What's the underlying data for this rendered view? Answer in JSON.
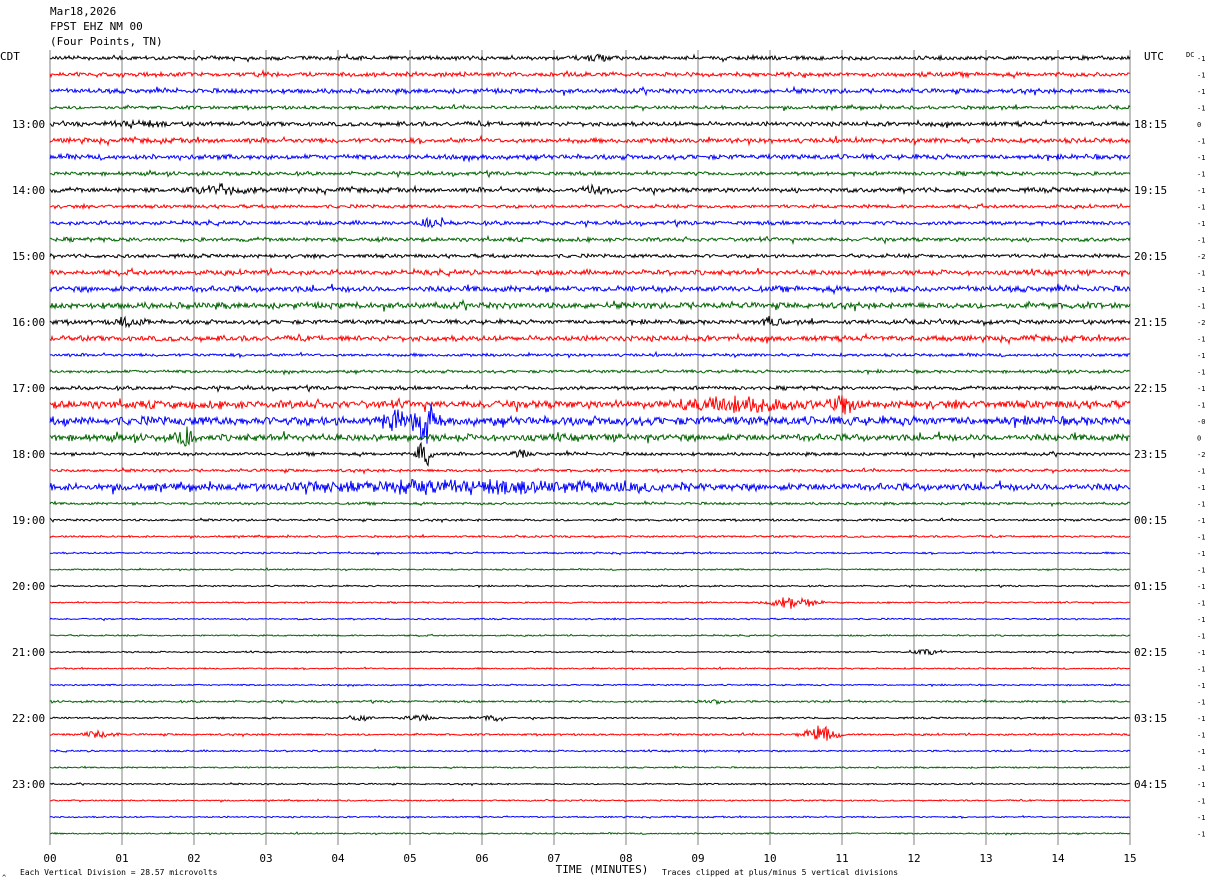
{
  "header": {
    "date": "Mar18,2026",
    "station": "FPST EHZ NM 00",
    "location": "(Four Points, TN)"
  },
  "left_timezone": "CDT",
  "right_timezone": "UTC",
  "dc_label": "DC",
  "footer": {
    "scale_note": "Each Vertical Division =   28.57 microvolts",
    "clip_note": "Traces clipped at plus/minus 5 vertical divisions",
    "corner_mark": "^"
  },
  "colors": {
    "trace_cycle": [
      "#000000",
      "#ff0000",
      "#0000ff",
      "#006400"
    ],
    "grid": "#808080",
    "text": "#000000",
    "background": "#ffffff"
  },
  "chart_data": {
    "type": "helicorder",
    "xlabel": "TIME (MINUTES)",
    "x_ticks": [
      "00",
      "01",
      "02",
      "03",
      "04",
      "05",
      "06",
      "07",
      "08",
      "09",
      "10",
      "11",
      "12",
      "13",
      "14",
      "15"
    ],
    "xlim": [
      0,
      15
    ],
    "minutes_per_line": 15,
    "lines_per_hour": 4,
    "left_hour_labels": [
      "13:00",
      "14:00",
      "15:00",
      "16:00",
      "17:00",
      "18:00",
      "19:00",
      "20:00",
      "21:00",
      "22:00",
      "23:00"
    ],
    "right_hour_labels": [
      "18:15",
      "19:15",
      "20:15",
      "21:15",
      "22:15",
      "23:15",
      "00:15",
      "01:15",
      "02:15",
      "03:15",
      "04:15"
    ],
    "first_labeled_line": 4,
    "dc_offsets": [
      "-1",
      "-1",
      "-1",
      "-1",
      "0",
      "-1",
      "-1",
      "-1",
      "-1",
      "-1",
      "-1",
      "-1",
      "-2",
      "-1",
      "-1",
      "-1",
      "-2",
      "-1",
      "-1",
      "-1",
      "-1",
      "-1",
      "-0",
      "0",
      "-2",
      "-1",
      "-1",
      "-1",
      "-1",
      "-1",
      "-1",
      "-1",
      "-1",
      "-1",
      "-1",
      "-1",
      "-1",
      "-1",
      "-1",
      "-1",
      "-1",
      "-1",
      "-1",
      "-1",
      "-1",
      "-1",
      "-1",
      "-1"
    ],
    "noise_levels": [
      1.6,
      1.8,
      1.9,
      1.4,
      1.8,
      2.0,
      2.0,
      1.5,
      1.9,
      1.4,
      1.6,
      1.6,
      1.5,
      2.0,
      2.4,
      2.5,
      1.8,
      2.2,
      1.2,
      1.2,
      1.5,
      3.2,
      3.6,
      2.8,
      1.3,
      1.2,
      3.0,
      1.0,
      0.9,
      0.8,
      0.7,
      0.6,
      0.6,
      0.6,
      0.6,
      0.6,
      0.6,
      0.6,
      0.6,
      0.8,
      0.7,
      0.8,
      0.7,
      0.6,
      0.6,
      0.6,
      0.6,
      0.6
    ],
    "events": [
      {
        "line": 0,
        "minute": 7.6,
        "amp": 4,
        "dur": 0.2
      },
      {
        "line": 4,
        "minute": 1.2,
        "amp": 3,
        "dur": 0.5
      },
      {
        "line": 8,
        "minute": 2.4,
        "amp": 4,
        "dur": 0.6
      },
      {
        "line": 8,
        "minute": 7.6,
        "amp": 5,
        "dur": 0.3
      },
      {
        "line": 10,
        "minute": 5.3,
        "amp": 4,
        "dur": 0.3
      },
      {
        "line": 16,
        "minute": 1.1,
        "amp": 6,
        "dur": 0.3
      },
      {
        "line": 16,
        "minute": 10.0,
        "amp": 4,
        "dur": 0.2
      },
      {
        "line": 21,
        "minute": 11.0,
        "amp": 8,
        "dur": 0.3
      },
      {
        "line": 21,
        "minute": 9.6,
        "amp": 6,
        "dur": 1.2
      },
      {
        "line": 22,
        "minute": 4.8,
        "amp": 10,
        "dur": 0.3
      },
      {
        "line": 22,
        "minute": 5.2,
        "amp": 20,
        "dur": 0.25
      },
      {
        "line": 23,
        "minute": 1.85,
        "amp": 14,
        "dur": 0.15
      },
      {
        "line": 24,
        "minute": 5.2,
        "amp": 14,
        "dur": 0.15
      },
      {
        "line": 24,
        "minute": 6.5,
        "amp": 4,
        "dur": 0.2
      },
      {
        "line": 26,
        "minute": 6.0,
        "amp": 5,
        "dur": 3.5
      },
      {
        "line": 33,
        "minute": 10.3,
        "amp": 6,
        "dur": 0.5
      },
      {
        "line": 36,
        "minute": 12.2,
        "amp": 3,
        "dur": 0.3
      },
      {
        "line": 39,
        "minute": 9.2,
        "amp": 2,
        "dur": 0.3
      },
      {
        "line": 40,
        "minute": 4.3,
        "amp": 4,
        "dur": 0.25
      },
      {
        "line": 40,
        "minute": 5.1,
        "amp": 4,
        "dur": 0.25
      },
      {
        "line": 40,
        "minute": 6.15,
        "amp": 5,
        "dur": 0.2
      },
      {
        "line": 41,
        "minute": 0.7,
        "amp": 4,
        "dur": 0.3
      },
      {
        "line": 41,
        "minute": 10.7,
        "amp": 9,
        "dur": 0.35
      }
    ]
  }
}
